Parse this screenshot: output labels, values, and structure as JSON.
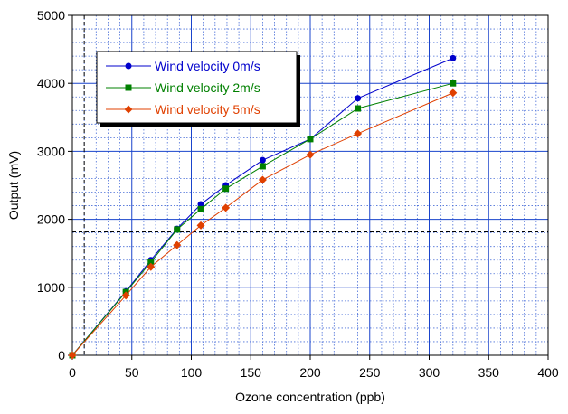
{
  "chart_data": {
    "type": "line",
    "xlabel": "Ozone concentration (ppb)",
    "ylabel": "Output (mV)",
    "xlim": [
      0,
      400
    ],
    "ylim": [
      0,
      5000
    ],
    "xticks": [
      0,
      50,
      100,
      150,
      200,
      250,
      300,
      350,
      400
    ],
    "yticks": [
      0,
      1000,
      2000,
      3000,
      4000,
      5000
    ],
    "xtick_labels": [
      "0",
      "50",
      "100",
      "150",
      "200",
      "250",
      "300",
      "350",
      "400"
    ],
    "ytick_labels": [
      "0",
      "1000",
      "2000",
      "3000",
      "4000",
      "5000"
    ],
    "grid": true,
    "legend_position": "top-left",
    "series": [
      {
        "name": "Wind velocity 0m/s",
        "color": "#0000cc",
        "marker": "circle",
        "x": [
          0,
          45,
          66,
          88,
          108,
          129,
          160,
          200,
          240,
          320
        ],
        "y": [
          0,
          940,
          1400,
          1860,
          2220,
          2500,
          2870,
          3180,
          3780,
          4370
        ]
      },
      {
        "name": "Wind velocity 2m/s",
        "color": "#008000",
        "marker": "square",
        "x": [
          0,
          45,
          66,
          88,
          108,
          129,
          160,
          200,
          240,
          320
        ],
        "y": [
          0,
          930,
          1370,
          1850,
          2150,
          2450,
          2780,
          3180,
          3630,
          4000
        ]
      },
      {
        "name": "Wind velocity 5m/s",
        "color": "#e04000",
        "marker": "diamond",
        "x": [
          0,
          45,
          66,
          88,
          108,
          129,
          160,
          200,
          240,
          320
        ],
        "y": [
          0,
          880,
          1300,
          1620,
          1910,
          2170,
          2580,
          2950,
          3260,
          3860
        ]
      }
    ]
  }
}
